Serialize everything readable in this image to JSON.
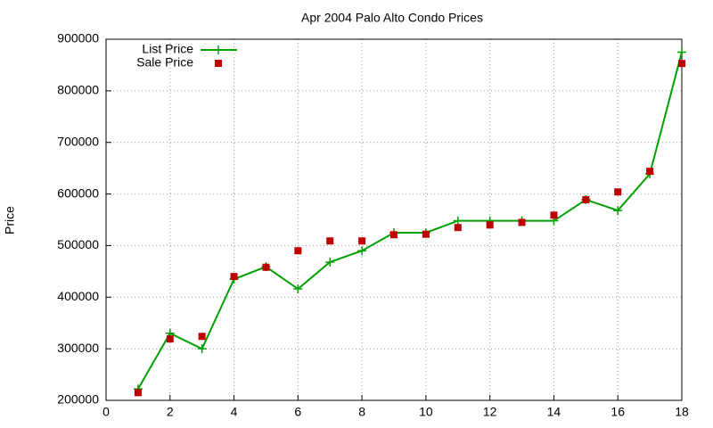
{
  "chart_data": {
    "type": "line",
    "title": "Apr 2004 Palo Alto Condo Prices",
    "y_label": "Price",
    "x": [
      1,
      2,
      3,
      4,
      5,
      6,
      7,
      8,
      9,
      10,
      11,
      12,
      13,
      14,
      15,
      16,
      17,
      18
    ],
    "series": [
      {
        "name": "List Price",
        "color": "#00a000",
        "style": "linespoints",
        "values": [
          222000,
          330000,
          300000,
          435000,
          459000,
          416000,
          468000,
          490000,
          525000,
          525000,
          548000,
          548000,
          548000,
          548000,
          589000,
          568000,
          639000,
          875000
        ]
      },
      {
        "name": "Sale Price",
        "color": "#c00000",
        "style": "points",
        "values": [
          215000,
          319000,
          324000,
          440000,
          458000,
          490000,
          509000,
          509000,
          521000,
          522000,
          535000,
          540000,
          545000,
          559000,
          589000,
          604000,
          644000,
          853000
        ]
      }
    ],
    "xlim": [
      0,
      18
    ],
    "xticks": [
      0,
      2,
      4,
      6,
      8,
      10,
      12,
      14,
      16,
      18
    ],
    "ylim": [
      200000,
      900000
    ],
    "yticks": [
      200000,
      300000,
      400000,
      500000,
      600000,
      700000,
      800000,
      900000
    ],
    "grid": true,
    "legend": "top-left"
  }
}
